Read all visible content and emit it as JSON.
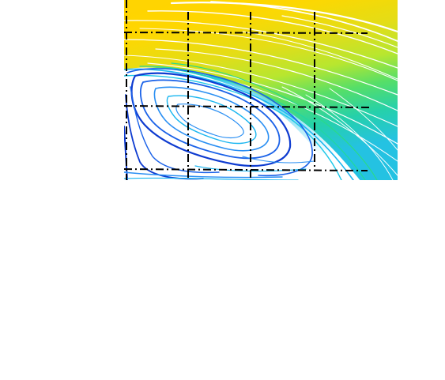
{
  "figure": {
    "kind": "streamline-velocity-field",
    "colormap": [
      "#0b2bb7",
      "#1f6fe0",
      "#17b8e6",
      "#22d6a2",
      "#5fe04a",
      "#c9e81d",
      "#f1e10f",
      "#ffd100",
      "#ffb600",
      "#ff9b1c"
    ],
    "streamline_colors": {
      "outer_flow": "#ffffff",
      "recirculation": [
        "#0e3bd0",
        "#1b62e8",
        "#2a8ff3",
        "#1ab6f0"
      ]
    },
    "grid_line_color": "#000000",
    "grid_line_style": "dash-dot"
  }
}
